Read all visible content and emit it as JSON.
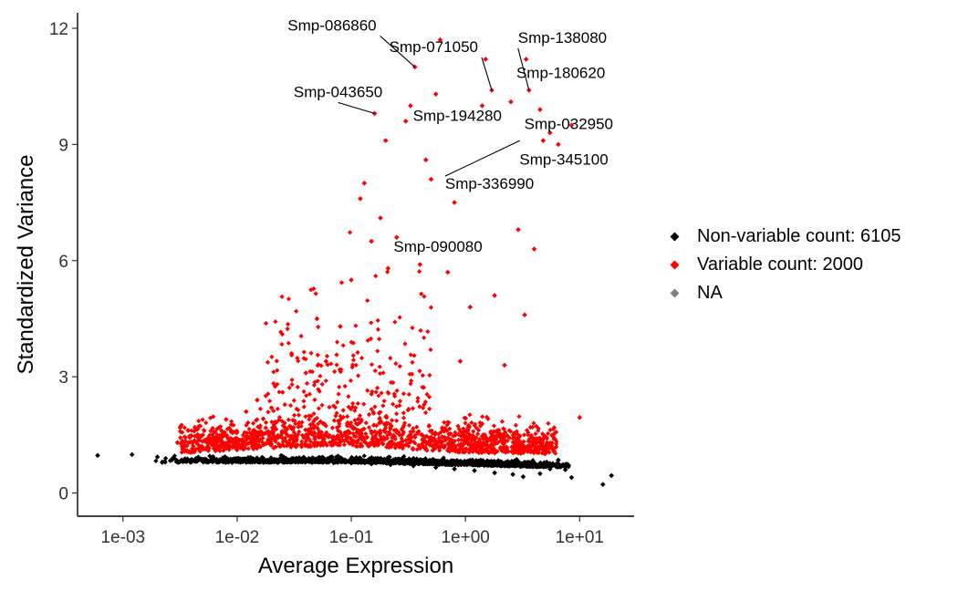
{
  "chart_data": {
    "type": "scatter",
    "title": "",
    "xlabel": "Average Expression",
    "ylabel": "Standardized Variance",
    "x_scale": "log10",
    "xlim": [
      0.0004,
      30
    ],
    "ylim": [
      -0.6,
      12.4
    ],
    "x_ticks": [
      0.001,
      0.01,
      0.1,
      1,
      10
    ],
    "x_tick_labels": [
      "1e-03",
      "1e-02",
      "1e-01",
      "1e+00",
      "1e+01"
    ],
    "y_ticks": [
      0,
      3,
      6,
      9,
      12
    ],
    "y_tick_labels": [
      "0",
      "3",
      "6",
      "9",
      "12"
    ],
    "grid": false,
    "legend_position": "right",
    "legend": [
      {
        "label": "Non-variable count: 6105",
        "color": "#000000"
      },
      {
        "label": "Variable count: 2000",
        "color": "#ff0000"
      },
      {
        "label": "NA",
        "color": "#7f7f7f"
      }
    ],
    "series": [
      {
        "name": "Non-variable count: 6105",
        "color": "#000000",
        "points": [
          [
            0.0006,
            0.97
          ],
          [
            0.0012,
            0.99
          ],
          [
            0.002,
            0.93
          ],
          [
            0.0028,
            0.9
          ],
          [
            0.0035,
            0.88
          ],
          [
            0.0045,
            0.87
          ],
          [
            0.006,
            0.86
          ],
          [
            0.008,
            0.85
          ],
          [
            0.011,
            0.83
          ],
          [
            0.015,
            0.82
          ],
          [
            0.02,
            0.81
          ],
          [
            0.03,
            0.8
          ],
          [
            0.045,
            0.79
          ],
          [
            0.07,
            0.78
          ],
          [
            0.1,
            0.77
          ],
          [
            0.15,
            0.75
          ],
          [
            0.22,
            0.73
          ],
          [
            0.35,
            0.7
          ],
          [
            0.55,
            0.66
          ],
          [
            0.8,
            0.62
          ],
          [
            1.2,
            0.58
          ],
          [
            1.8,
            0.52
          ],
          [
            2.6,
            0.48
          ],
          [
            3.2,
            0.42
          ],
          [
            4.5,
            0.5
          ],
          [
            5.5,
            0.62
          ],
          [
            6.5,
            0.85
          ],
          [
            7.5,
            0.6
          ],
          [
            8.5,
            0.4
          ],
          [
            16,
            0.22
          ],
          [
            19,
            0.45
          ]
        ]
      },
      {
        "name": "Variable count: 2000",
        "color": "#ff0000",
        "points": [
          [
            0.003,
            1.3
          ],
          [
            0.005,
            1.5
          ],
          [
            0.008,
            1.9
          ],
          [
            0.012,
            2.1
          ],
          [
            0.015,
            2.4
          ],
          [
            0.02,
            2.2
          ],
          [
            0.025,
            2.6
          ],
          [
            0.03,
            3.6
          ],
          [
            0.04,
            3.1
          ],
          [
            0.05,
            4.5
          ],
          [
            0.06,
            3.4
          ],
          [
            0.08,
            4.3
          ],
          [
            0.1,
            5.5
          ],
          [
            0.12,
            7.6
          ],
          [
            0.13,
            8.0
          ],
          [
            0.15,
            6.5
          ],
          [
            0.18,
            7.1
          ],
          [
            0.2,
            9.1
          ],
          [
            0.25,
            6.6
          ],
          [
            0.3,
            9.6
          ],
          [
            0.33,
            10.0
          ],
          [
            0.36,
            11.0
          ],
          [
            0.4,
            5.9
          ],
          [
            0.45,
            8.6
          ],
          [
            0.5,
            8.1
          ],
          [
            0.55,
            10.3
          ],
          [
            0.6,
            11.7
          ],
          [
            0.7,
            5.7
          ],
          [
            0.8,
            7.5
          ],
          [
            0.9,
            3.4
          ],
          [
            1.1,
            4.8
          ],
          [
            1.4,
            10.0
          ],
          [
            1.5,
            11.2
          ],
          [
            1.7,
            10.4
          ],
          [
            1.8,
            5.1
          ],
          [
            2.2,
            3.3
          ],
          [
            2.5,
            10.1
          ],
          [
            2.9,
            6.8
          ],
          [
            3.3,
            4.6
          ],
          [
            3.4,
            11.2
          ],
          [
            3.6,
            10.4
          ],
          [
            4.0,
            6.3
          ],
          [
            4.5,
            9.9
          ],
          [
            4.8,
            9.1
          ],
          [
            5.5,
            9.3
          ],
          [
            6.5,
            9.0
          ],
          [
            8.5,
            9.5
          ],
          [
            10,
            1.95
          ],
          [
            0.16,
            9.8
          ],
          [
            0.21,
            5.8
          ]
        ]
      }
    ],
    "annotations": [
      {
        "label": "Smp-086860",
        "x": 0.36,
        "y": 11.0
      },
      {
        "label": "Smp-071050",
        "x": 1.7,
        "y": 10.4
      },
      {
        "label": "Smp-138080",
        "x": 3.6,
        "y": 10.4
      },
      {
        "label": "Smp-180620",
        "x": 2.5,
        "y": 10.1
      },
      {
        "label": "Smp-043650",
        "x": 0.16,
        "y": 9.8
      },
      {
        "label": "Smp-032950",
        "x": 3.4,
        "y": 9.3
      },
      {
        "label": "Smp-194280",
        "x": 2.5,
        "y": 9.4
      },
      {
        "label": "Smp-345100",
        "x": 3.2,
        "y": 9.0
      },
      {
        "label": "Smp-336990",
        "x": 3.0,
        "y": 9.1
      },
      {
        "label": "Smp-090080",
        "x": 0.21,
        "y": 5.8
      }
    ]
  }
}
